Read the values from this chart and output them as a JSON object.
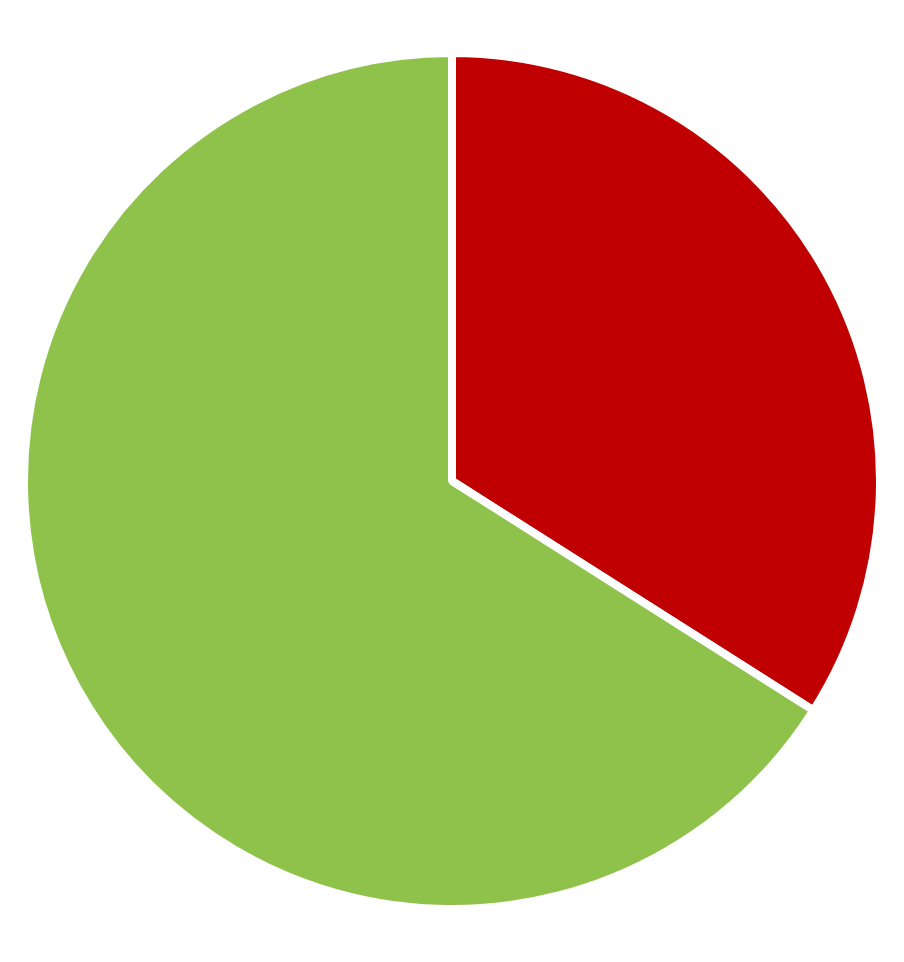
{
  "chart_data": {
    "type": "pie",
    "categories": [
      null,
      null
    ],
    "values": [
      34,
      66
    ],
    "colors": [
      "#c00000",
      "#8fc24a"
    ],
    "legend": false
  }
}
